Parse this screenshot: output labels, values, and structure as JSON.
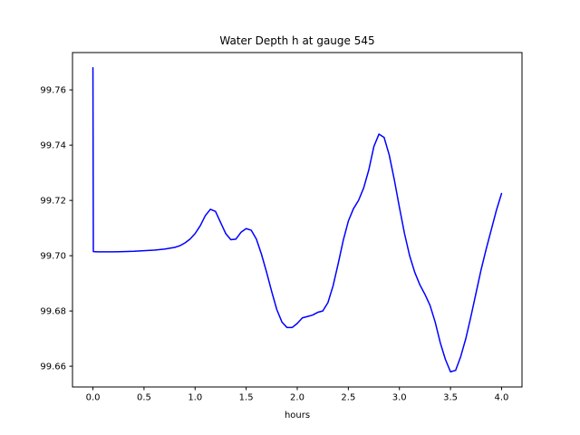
{
  "chart_data": {
    "type": "line",
    "title": "Water Depth h at gauge 545",
    "xlabel": "hours",
    "ylabel": "",
    "grid": false,
    "legend": "none",
    "line_color": "#0000ff",
    "axis_color": "#000000",
    "background_color": "#ffffff",
    "xlim": [
      -0.2,
      4.2
    ],
    "ylim": [
      99.6525,
      99.7735
    ],
    "xtick_values": [
      0.0,
      0.5,
      1.0,
      1.5,
      2.0,
      2.5,
      3.0,
      3.5,
      4.0
    ],
    "xtick_labels": [
      "0.0",
      "0.5",
      "1.0",
      "1.5",
      "2.0",
      "2.5",
      "3.0",
      "3.5",
      "4.0"
    ],
    "ytick_values": [
      99.66,
      99.68,
      99.7,
      99.72,
      99.74,
      99.76
    ],
    "ytick_labels": [
      "99.66",
      "99.68",
      "99.70",
      "99.72",
      "99.74",
      "99.76"
    ],
    "series": [
      {
        "name": "water-depth-h",
        "x": [
          0.0,
          0.004,
          0.05,
          0.1,
          0.2,
          0.3,
          0.4,
          0.5,
          0.6,
          0.7,
          0.8,
          0.85,
          0.9,
          0.95,
          1.0,
          1.05,
          1.1,
          1.15,
          1.2,
          1.25,
          1.3,
          1.35,
          1.4,
          1.45,
          1.5,
          1.55,
          1.6,
          1.65,
          1.7,
          1.75,
          1.8,
          1.85,
          1.9,
          1.95,
          2.0,
          2.05,
          2.1,
          2.15,
          2.2,
          2.25,
          2.3,
          2.35,
          2.4,
          2.45,
          2.5,
          2.55,
          2.6,
          2.65,
          2.7,
          2.75,
          2.8,
          2.85,
          2.9,
          2.95,
          3.0,
          3.05,
          3.1,
          3.15,
          3.2,
          3.25,
          3.3,
          3.35,
          3.4,
          3.45,
          3.5,
          3.55,
          3.6,
          3.65,
          3.7,
          3.75,
          3.8,
          3.85,
          3.9,
          3.95,
          4.0
        ],
        "y": [
          99.768,
          99.7015,
          99.7014,
          99.7014,
          99.7014,
          99.7015,
          99.7016,
          99.7018,
          99.702,
          99.7024,
          99.703,
          99.7036,
          99.7046,
          99.706,
          99.708,
          99.7108,
          99.7145,
          99.7168,
          99.716,
          99.712,
          99.708,
          99.7058,
          99.706,
          99.7085,
          99.7098,
          99.7092,
          99.706,
          99.7005,
          99.694,
          99.687,
          99.6805,
          99.676,
          99.674,
          99.674,
          99.6755,
          99.6775,
          99.678,
          99.6785,
          99.6795,
          99.68,
          99.683,
          99.689,
          99.697,
          99.7055,
          99.7125,
          99.717,
          99.72,
          99.7245,
          99.731,
          99.7395,
          99.744,
          99.7428,
          99.7365,
          99.7275,
          99.7175,
          99.708,
          99.7,
          99.694,
          99.6895,
          99.686,
          99.682,
          99.676,
          99.6685,
          99.6625,
          99.658,
          99.6585,
          99.6635,
          99.67,
          99.678,
          99.6865,
          99.695,
          99.7025,
          99.7095,
          99.7165,
          99.7225
        ]
      }
    ]
  }
}
